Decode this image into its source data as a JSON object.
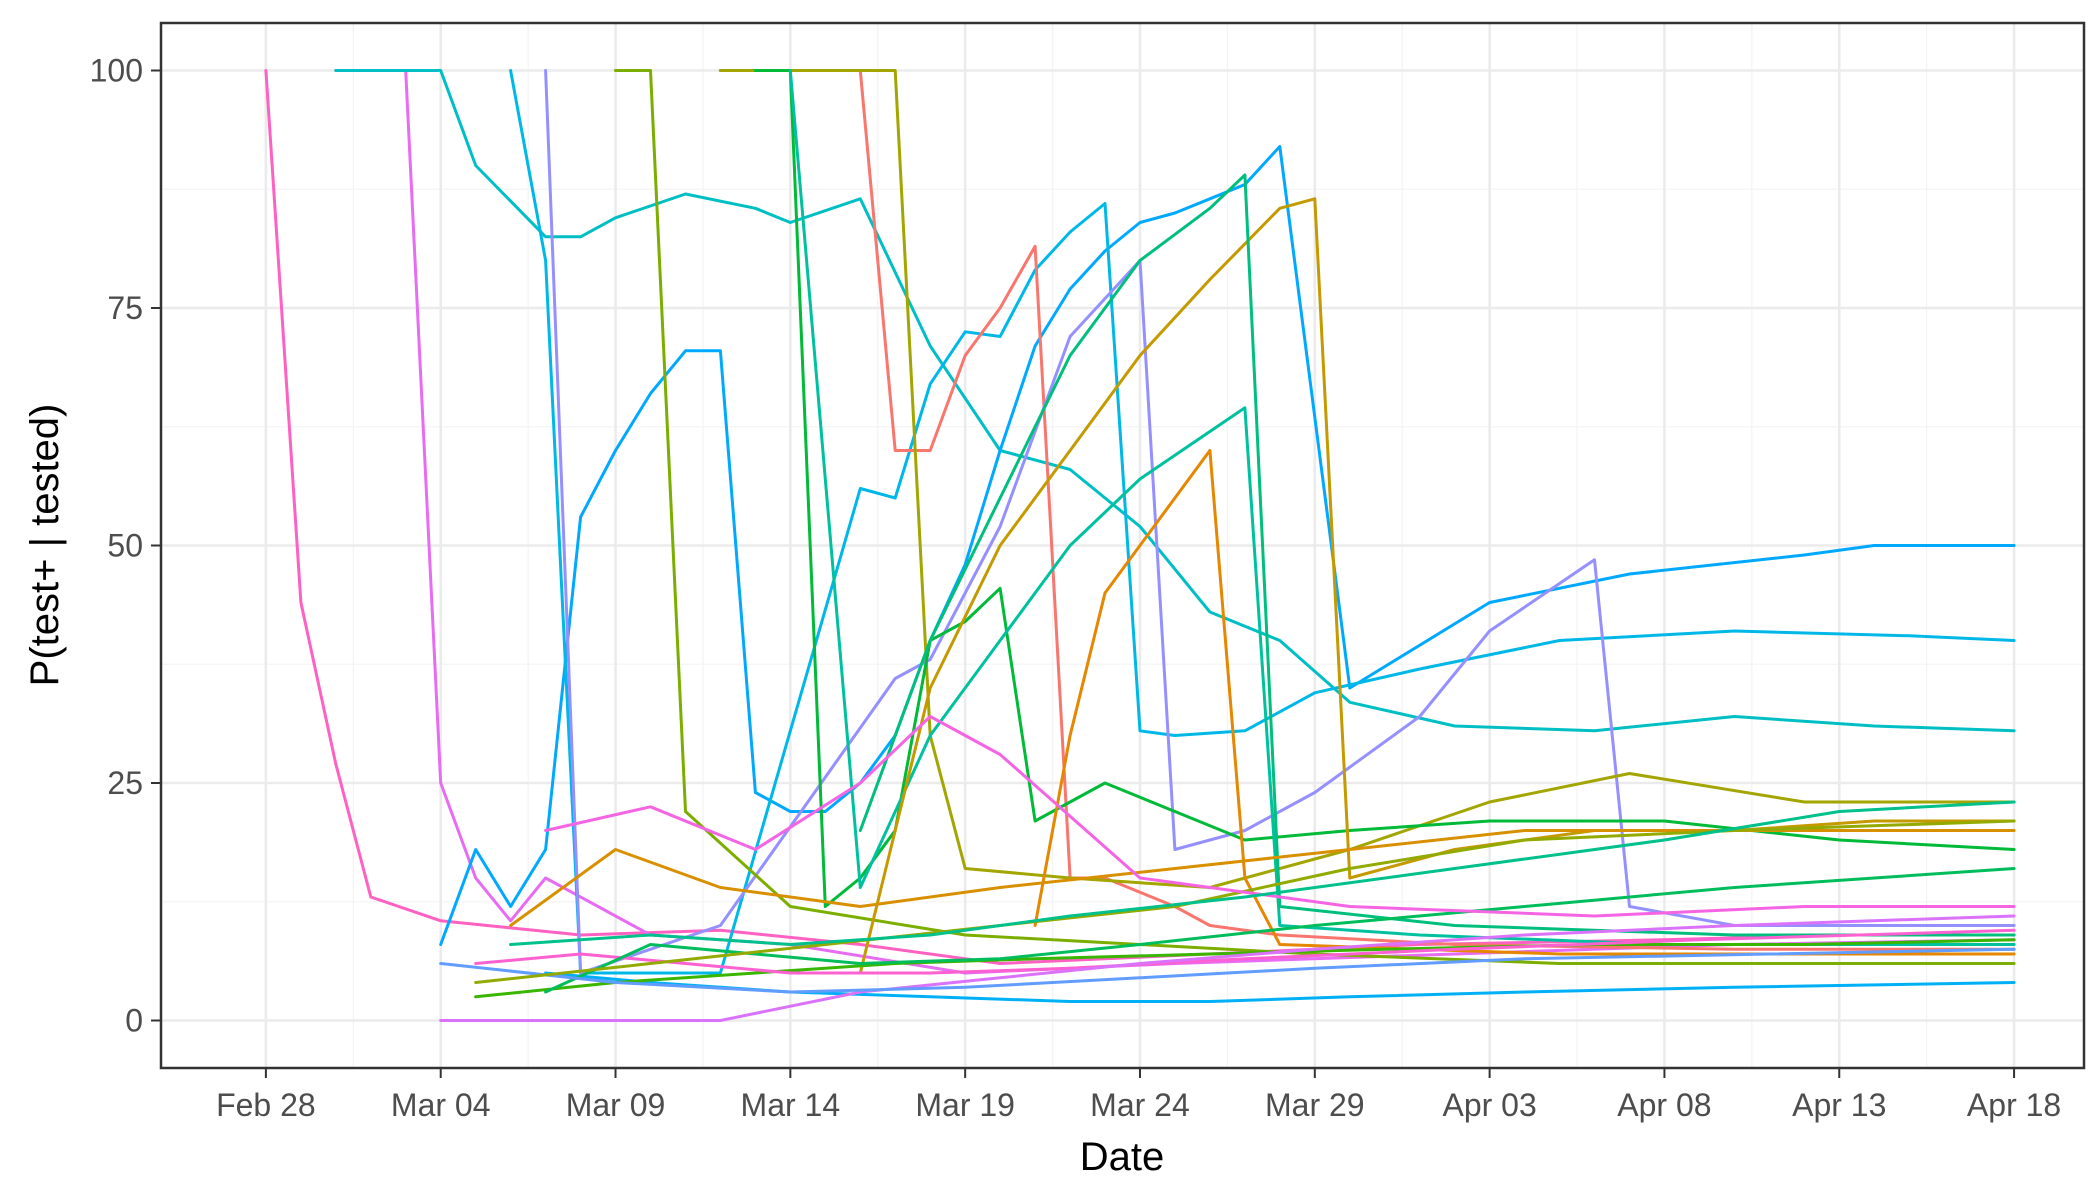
{
  "chart_data": {
    "type": "line",
    "title": "",
    "xlabel": "Date",
    "ylabel": "P(test+ | tested)",
    "xlim": [
      "2020-02-25",
      "2020-04-20"
    ],
    "ylim": [
      -5,
      105
    ],
    "x_ticks": [
      "2020-02-28",
      "2020-03-04",
      "2020-03-09",
      "2020-03-14",
      "2020-03-19",
      "2020-03-24",
      "2020-03-29",
      "2020-04-03",
      "2020-04-08",
      "2020-04-13",
      "2020-04-18"
    ],
    "x_tick_labels": [
      "Feb 28",
      "Mar 04",
      "Mar 09",
      "Mar 14",
      "Mar 19",
      "Mar 24",
      "Mar 29",
      "Apr 03",
      "Apr 08",
      "Apr 13",
      "Apr 18"
    ],
    "y_ticks": [
      0,
      25,
      50,
      75,
      100
    ],
    "y_tick_labels": [
      "0",
      "25",
      "50",
      "75",
      "100"
    ],
    "grid": true,
    "legend": "none",
    "series": [
      {
        "color": "#FF61C3",
        "x": [
          "2020-02-28",
          "2020-02-29",
          "2020-03-01",
          "2020-03-02",
          "2020-03-04",
          "2020-03-08",
          "2020-03-12",
          "2020-03-16",
          "2020-03-20",
          "2020-03-26",
          "2020-04-01",
          "2020-04-08",
          "2020-04-13",
          "2020-04-18"
        ],
        "y": [
          100,
          44,
          27,
          13,
          10.5,
          9,
          9.5,
          8,
          6,
          7,
          8,
          8.5,
          9,
          9
        ]
      },
      {
        "color": "#E76BF3",
        "x": [
          "2020-03-01",
          "2020-03-03",
          "2020-03-04",
          "2020-03-05",
          "2020-03-06",
          "2020-03-07",
          "2020-03-10",
          "2020-03-14",
          "2020-03-19",
          "2020-03-25",
          "2020-04-02",
          "2020-04-10",
          "2020-04-18"
        ],
        "y": [
          100,
          100,
          25,
          15,
          10.5,
          15,
          9,
          8,
          5,
          6,
          7,
          8,
          8.5
        ]
      },
      {
        "color": "#00BFC4",
        "x": [
          "2020-03-01",
          "2020-03-04",
          "2020-03-05",
          "2020-03-07",
          "2020-03-08",
          "2020-03-09",
          "2020-03-11",
          "2020-03-13",
          "2020-03-14",
          "2020-03-16",
          "2020-03-18",
          "2020-03-20",
          "2020-03-22",
          "2020-03-24",
          "2020-03-26",
          "2020-03-28",
          "2020-03-30",
          "2020-04-02",
          "2020-04-06",
          "2020-04-10",
          "2020-04-14",
          "2020-04-18"
        ],
        "y": [
          100,
          100,
          90,
          82.5,
          82.5,
          84.5,
          87,
          85.5,
          84,
          86.5,
          71,
          60,
          58,
          52,
          43,
          40,
          33.5,
          31,
          30.5,
          32,
          31,
          30.5
        ]
      },
      {
        "color": "#00A9FF",
        "x": [
          "2020-03-04",
          "2020-03-05",
          "2020-03-06",
          "2020-03-07",
          "2020-03-08",
          "2020-03-09",
          "2020-03-10",
          "2020-03-11",
          "2020-03-12",
          "2020-03-13",
          "2020-03-14",
          "2020-03-15",
          "2020-03-16",
          "2020-03-17",
          "2020-03-18",
          "2020-03-19",
          "2020-03-20",
          "2020-03-21",
          "2020-03-22",
          "2020-03-23",
          "2020-03-24",
          "2020-03-25",
          "2020-03-26",
          "2020-03-27",
          "2020-03-28",
          "2020-03-30",
          "2020-04-03",
          "2020-04-07",
          "2020-04-12",
          "2020-04-14",
          "2020-04-18"
        ],
        "y": [
          8,
          18,
          12,
          18,
          53,
          60,
          66,
          70.5,
          70.5,
          24,
          22,
          22,
          25,
          30,
          40,
          48,
          60,
          71,
          77,
          81,
          84,
          85,
          86.5,
          88,
          92,
          35,
          44,
          47,
          49,
          50,
          50
        ]
      },
      {
        "color": "#00B8E7",
        "x": [
          "2020-03-06",
          "2020-03-07",
          "2020-03-08",
          "2020-03-12",
          "2020-03-16",
          "2020-03-17",
          "2020-03-18",
          "2020-03-19",
          "2020-03-20",
          "2020-03-21",
          "2020-03-22",
          "2020-03-23",
          "2020-03-24",
          "2020-03-25",
          "2020-03-27",
          "2020-03-29",
          "2020-04-01",
          "2020-04-05",
          "2020-04-10",
          "2020-04-15",
          "2020-04-18"
        ],
        "y": [
          100,
          80,
          5,
          5,
          56,
          55,
          67,
          72.5,
          72,
          79,
          83,
          86,
          30.5,
          30,
          30.5,
          34.5,
          37,
          40,
          41,
          40.5,
          40
        ]
      },
      {
        "color": "#F8766D",
        "x": [
          "2020-03-12",
          "2020-03-14",
          "2020-03-16",
          "2020-03-17",
          "2020-03-18",
          "2020-03-19",
          "2020-03-20",
          "2020-03-21",
          "2020-03-22",
          "2020-03-23",
          "2020-03-25",
          "2020-03-26",
          "2020-03-28",
          "2020-04-02",
          "2020-04-10",
          "2020-04-18"
        ],
        "y": [
          100,
          100,
          100,
          60,
          60,
          70,
          75,
          81.5,
          15,
          15,
          12,
          10,
          9,
          8,
          7.5,
          7.5
        ]
      },
      {
        "color": "#9590FF",
        "x": [
          "2020-03-07",
          "2020-03-08",
          "2020-03-12",
          "2020-03-17",
          "2020-03-18",
          "2020-03-19",
          "2020-03-20",
          "2020-03-21",
          "2020-03-22",
          "2020-03-24",
          "2020-03-25",
          "2020-03-27",
          "2020-03-29",
          "2020-04-01",
          "2020-04-03",
          "2020-04-05",
          "2020-04-06",
          "2020-04-07",
          "2020-04-10",
          "2020-04-14",
          "2020-04-18"
        ],
        "y": [
          100,
          5,
          10,
          36,
          38,
          45,
          52,
          62,
          72,
          80,
          18,
          20,
          24,
          32,
          41,
          46,
          48.5,
          12,
          10,
          10,
          10
        ]
      },
      {
        "color": "#7CAE00",
        "x": [
          "2020-03-09",
          "2020-03-10",
          "2020-03-11",
          "2020-03-14",
          "2020-03-19",
          "2020-03-24",
          "2020-03-29",
          "2020-04-05",
          "2020-04-12",
          "2020-04-18"
        ],
        "y": [
          100,
          100,
          22,
          12,
          9,
          8,
          7,
          6,
          6,
          6
        ]
      },
      {
        "color": "#A3A500",
        "x": [
          "2020-03-12",
          "2020-03-16",
          "2020-03-17",
          "2020-03-18",
          "2020-03-19",
          "2020-03-22",
          "2020-03-26",
          "2020-03-30",
          "2020-04-03",
          "2020-04-07",
          "2020-04-12",
          "2020-04-18"
        ],
        "y": [
          100,
          100,
          100,
          30,
          16,
          15,
          14,
          18,
          23,
          26,
          23,
          23
        ]
      },
      {
        "color": "#00BA38",
        "x": [
          "2020-03-13",
          "2020-03-14",
          "2020-03-15",
          "2020-03-16",
          "2020-03-17",
          "2020-03-18",
          "2020-03-19",
          "2020-03-20",
          "2020-03-21",
          "2020-03-23",
          "2020-03-25",
          "2020-03-27",
          "2020-03-30",
          "2020-04-03",
          "2020-04-08",
          "2020-04-13",
          "2020-04-18"
        ],
        "y": [
          100,
          100,
          12,
          15,
          20,
          40,
          42,
          45.5,
          21,
          25,
          22,
          19,
          20,
          21,
          21,
          19,
          18
        ]
      },
      {
        "color": "#00C19F",
        "x": [
          "2020-03-14",
          "2020-03-16",
          "2020-03-18",
          "2020-03-20",
          "2020-03-22",
          "2020-03-24",
          "2020-03-26",
          "2020-03-27",
          "2020-03-28",
          "2020-04-01",
          "2020-04-08",
          "2020-04-18"
        ],
        "y": [
          100,
          14,
          30,
          40,
          50,
          57,
          62,
          64.5,
          10,
          9,
          8,
          8
        ]
      },
      {
        "color": "#C49A00",
        "x": [
          "2020-03-16",
          "2020-03-17",
          "2020-03-18",
          "2020-03-20",
          "2020-03-22",
          "2020-03-24",
          "2020-03-26",
          "2020-03-28",
          "2020-03-29",
          "2020-03-30",
          "2020-04-02",
          "2020-04-06",
          "2020-04-10",
          "2020-04-14",
          "2020-04-18"
        ],
        "y": [
          5,
          20,
          35,
          50,
          60,
          70,
          78,
          85.5,
          86.5,
          15,
          18,
          20,
          20,
          21,
          21
        ]
      },
      {
        "color": "#00BF7D",
        "x": [
          "2020-03-16",
          "2020-03-18",
          "2020-03-20",
          "2020-03-22",
          "2020-03-24",
          "2020-03-26",
          "2020-03-27",
          "2020-03-28",
          "2020-04-02",
          "2020-04-10",
          "2020-04-18"
        ],
        "y": [
          20,
          40,
          55,
          70,
          80,
          85.5,
          89,
          12,
          10,
          9,
          9
        ]
      },
      {
        "color": "#E58700",
        "x": [
          "2020-03-21",
          "2020-03-22",
          "2020-03-23",
          "2020-03-25",
          "2020-03-26",
          "2020-03-27",
          "2020-03-28",
          "2020-04-05",
          "2020-04-18"
        ],
        "y": [
          10,
          30,
          45,
          55,
          60,
          15,
          8,
          7,
          7
        ]
      },
      {
        "color": "#00B0F6",
        "x": [
          "2020-03-07",
          "2020-03-10",
          "2020-03-14",
          "2020-03-18",
          "2020-03-22",
          "2020-03-26",
          "2020-03-30",
          "2020-04-04",
          "2020-04-10",
          "2020-04-18"
        ],
        "y": [
          5,
          4,
          3,
          2.5,
          2,
          2,
          2.5,
          3,
          3.5,
          4
        ]
      },
      {
        "color": "#39B600",
        "x": [
          "2020-03-05",
          "2020-03-09",
          "2020-03-13",
          "2020-03-17",
          "2020-03-21",
          "2020-03-26",
          "2020-03-31",
          "2020-04-06",
          "2020-04-12",
          "2020-04-18"
        ],
        "y": [
          2.5,
          4,
          5,
          6,
          6.5,
          7,
          7.5,
          8,
          8,
          8.5
        ]
      },
      {
        "color": "#D89000",
        "x": [
          "2020-03-06",
          "2020-03-09",
          "2020-03-12",
          "2020-03-16",
          "2020-03-20",
          "2020-03-25",
          "2020-03-30",
          "2020-04-04",
          "2020-04-10",
          "2020-04-18"
        ],
        "y": [
          10,
          18,
          14,
          12,
          14,
          16,
          18,
          20,
          20,
          20
        ]
      },
      {
        "color": "#FD61D1",
        "x": [
          "2020-03-05",
          "2020-03-08",
          "2020-03-11",
          "2020-03-14",
          "2020-03-18",
          "2020-03-22",
          "2020-03-27",
          "2020-04-02",
          "2020-04-09",
          "2020-04-18"
        ],
        "y": [
          6,
          7,
          6,
          5,
          5,
          5.5,
          6.5,
          7.5,
          8.5,
          9.5
        ]
      },
      {
        "color": "#00BD5C",
        "x": [
          "2020-03-07",
          "2020-03-10",
          "2020-03-13",
          "2020-03-16",
          "2020-03-20",
          "2020-03-24",
          "2020-03-29",
          "2020-04-04",
          "2020-04-10",
          "2020-04-18"
        ],
        "y": [
          3,
          8,
          7,
          6,
          6.5,
          8,
          10,
          12,
          14,
          16
        ]
      },
      {
        "color": "#DB72FB",
        "x": [
          "2020-03-04",
          "2020-03-08",
          "2020-03-12",
          "2020-03-16",
          "2020-03-20",
          "2020-03-24",
          "2020-03-29",
          "2020-04-04",
          "2020-04-10",
          "2020-04-18"
        ],
        "y": [
          0,
          0,
          0,
          3,
          4.5,
          6,
          7.5,
          9,
          10,
          11
        ]
      },
      {
        "color": "#619CFF",
        "x": [
          "2020-03-04",
          "2020-03-09",
          "2020-03-14",
          "2020-03-19",
          "2020-03-24",
          "2020-03-29",
          "2020-04-04",
          "2020-04-11",
          "2020-04-18"
        ],
        "y": [
          6,
          4,
          3,
          3.5,
          4.5,
          5.5,
          6.5,
          7,
          7.5
        ]
      },
      {
        "color": "#93AA00",
        "x": [
          "2020-03-05",
          "2020-03-10",
          "2020-03-15",
          "2020-03-20",
          "2020-03-25",
          "2020-03-30",
          "2020-04-04",
          "2020-04-10",
          "2020-04-18"
        ],
        "y": [
          4,
          6,
          8,
          10,
          12,
          16,
          19,
          20,
          21
        ]
      },
      {
        "color": "#F564E3",
        "x": [
          "2020-03-07",
          "2020-03-10",
          "2020-03-13",
          "2020-03-16",
          "2020-03-18",
          "2020-03-20",
          "2020-03-24",
          "2020-03-30",
          "2020-04-06",
          "2020-04-12",
          "2020-04-18"
        ],
        "y": [
          20,
          22.5,
          18,
          25,
          32,
          28,
          15,
          12,
          11,
          12,
          12
        ]
      },
      {
        "color": "#00C08B",
        "x": [
          "2020-03-06",
          "2020-03-10",
          "2020-03-14",
          "2020-03-18",
          "2020-03-22",
          "2020-03-27",
          "2020-04-02",
          "2020-04-08",
          "2020-04-13",
          "2020-04-18"
        ],
        "y": [
          8,
          9,
          8,
          9,
          11,
          13,
          16,
          19,
          22,
          23
        ]
      }
    ]
  }
}
